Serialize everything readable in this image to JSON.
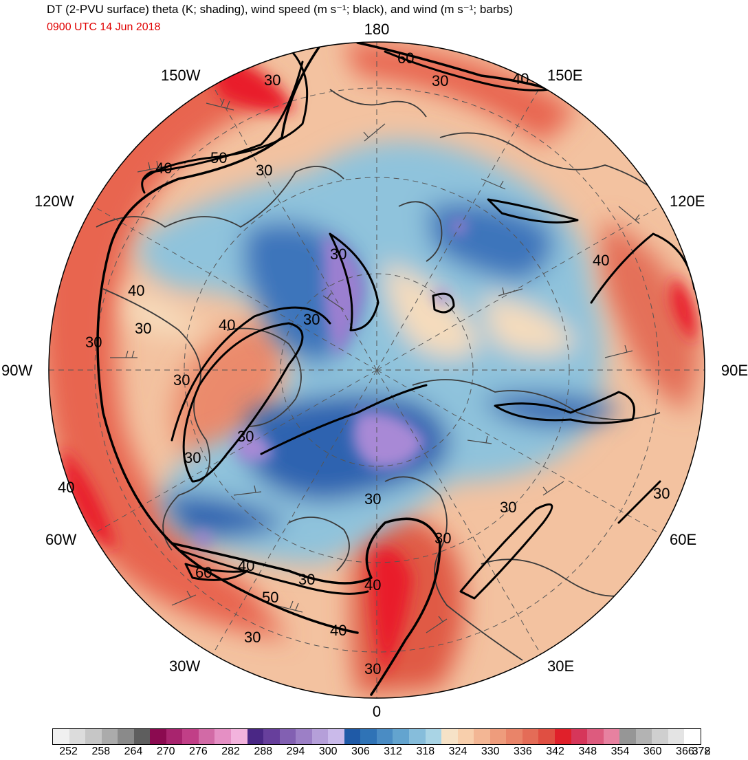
{
  "header": {
    "title": "DT (2-PVU surface) theta (K; shading), wind speed (m s⁻¹; black), and wind (m s⁻¹; barbs)",
    "valid_time": "0900 UTC 14 Jun 2018"
  },
  "map": {
    "projection": "north polar stereographic",
    "longitude_labels": {
      "top": "180",
      "bottom": "0",
      "left": "90W",
      "right": "90E",
      "upper_left_1": "150W",
      "upper_left_2": "120W",
      "lower_left_1": "60W",
      "lower_left_2": "30W",
      "upper_right_1": "150E",
      "upper_right_2": "120E",
      "lower_right_1": "60E",
      "lower_right_2": "30E"
    },
    "contour_values": [
      "30",
      "40",
      "50",
      "60"
    ],
    "colors": {
      "cold_core": "#2f63b0",
      "cold_mid": "#5b93c8",
      "cool": "#9cc8dd",
      "neutral": "#f6dcbc",
      "warm": "#eda184",
      "hot": "#e2493a",
      "hottest": "#e91e2a",
      "purple": "#9b7fd0",
      "coast": "#3a3a3a"
    }
  },
  "colorbar": {
    "ticks": [
      "252",
      "258",
      "264",
      "270",
      "276",
      "282",
      "288",
      "294",
      "300",
      "306",
      "312",
      "318",
      "324",
      "330",
      "336",
      "342",
      "348",
      "354",
      "360",
      "366",
      "372",
      "378"
    ],
    "swatches": [
      "#f0f0f0",
      "#dcdcdc",
      "#c6c6c6",
      "#ababab",
      "#8a8a8a",
      "#5e5e5e",
      "#8b0a50",
      "#a8246e",
      "#c13f87",
      "#d26aa6",
      "#e58fc4",
      "#f3b3dd",
      "#4a2785",
      "#673f9c",
      "#8260b2",
      "#9c7fc6",
      "#b59fd9",
      "#cabaea",
      "#1f5aa7",
      "#2f73b6",
      "#4a8cc4",
      "#63a4cf",
      "#86bddb",
      "#a9d4e5",
      "#f6e2c7",
      "#f8cfac",
      "#f3b694",
      "#ee9c7c",
      "#e98469",
      "#e46c57",
      "#e04f42",
      "#e0202a",
      "#d6365a",
      "#dd5b7e",
      "#e781a0",
      "#969696",
      "#b3b3b3",
      "#cfcfcf",
      "#e4e4e4",
      "#ffffff"
    ]
  }
}
